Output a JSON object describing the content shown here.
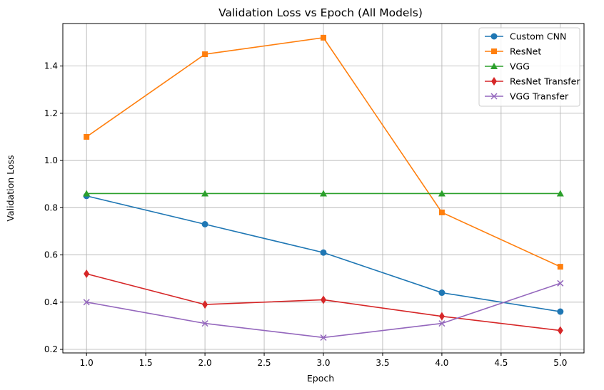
{
  "chart_data": {
    "type": "line",
    "title": "Validation Loss vs Epoch (All Models)",
    "xlabel": "Epoch",
    "ylabel": "Validation Loss",
    "xlim": [
      0.8,
      5.2
    ],
    "ylim": [
      0.185,
      1.58
    ],
    "xticks": [
      1.0,
      1.5,
      2.0,
      2.5,
      3.0,
      3.5,
      4.0,
      4.5,
      5.0
    ],
    "xtick_labels": [
      "1.0",
      "1.5",
      "2.0",
      "2.5",
      "3.0",
      "3.5",
      "4.0",
      "4.5",
      "5.0"
    ],
    "yticks": [
      0.2,
      0.4,
      0.6,
      0.8,
      1.0,
      1.2,
      1.4
    ],
    "ytick_labels": [
      "0.2",
      "0.4",
      "0.6",
      "0.8",
      "1.0",
      "1.2",
      "1.4"
    ],
    "grid": true,
    "legend_position": "top-right",
    "x": [
      1,
      2,
      3,
      4,
      5
    ],
    "series": [
      {
        "name": "Custom CNN",
        "values": [
          0.85,
          0.73,
          0.61,
          0.44,
          0.36
        ],
        "color": "#1f77b4",
        "marker": "circle"
      },
      {
        "name": "ResNet",
        "values": [
          1.1,
          1.45,
          1.52,
          0.78,
          0.55
        ],
        "color": "#ff7f0e",
        "marker": "square"
      },
      {
        "name": "VGG",
        "values": [
          0.86,
          0.86,
          0.86,
          0.86,
          0.86
        ],
        "color": "#2ca02c",
        "marker": "triangle"
      },
      {
        "name": "ResNet Transfer",
        "values": [
          0.52,
          0.39,
          0.41,
          0.34,
          0.28
        ],
        "color": "#d62728",
        "marker": "diamond"
      },
      {
        "name": "VGG Transfer",
        "values": [
          0.4,
          0.31,
          0.25,
          0.31,
          0.48
        ],
        "color": "#9467bd",
        "marker": "x"
      }
    ]
  }
}
